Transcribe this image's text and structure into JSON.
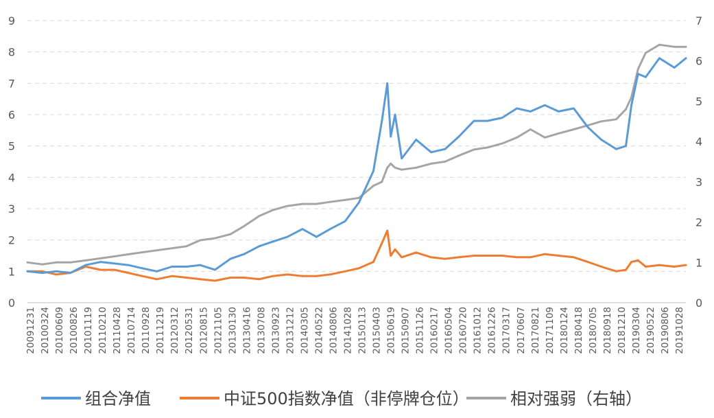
{
  "chart_data": {
    "type": "line",
    "y_left": {
      "ylim": [
        0,
        9
      ],
      "ticks": [
        "0",
        "1",
        "2",
        "3",
        "4",
        "5",
        "6",
        "7",
        "8",
        "9"
      ]
    },
    "y_right": {
      "ylim": [
        0,
        7
      ],
      "ticks": [
        "0",
        "1",
        "2",
        "3",
        "4",
        "5",
        "6",
        "7"
      ]
    },
    "grid": "horizontal dashed",
    "legend_position": "bottom",
    "x_tick_labels": [
      "20091231",
      "20100324",
      "20100609",
      "20100826",
      "20101119",
      "20110210",
      "20110428",
      "20110714",
      "20110928",
      "20111219",
      "20120312",
      "20120531",
      "20120815",
      "20121105",
      "20130130",
      "20130416",
      "20130708",
      "20130923",
      "20131212",
      "20140305",
      "20140522",
      "20140806",
      "20141028",
      "20150113",
      "20150403",
      "20150619",
      "20150907",
      "20151126",
      "20160217",
      "20160504",
      "20160720",
      "20161012",
      "20161226",
      "20170317",
      "20170607",
      "20170821",
      "20171109",
      "20180124",
      "20180418",
      "20180705",
      "20180918",
      "20181210",
      "20190304",
      "20190522",
      "20190806",
      "20191028"
    ],
    "series": [
      {
        "name": "组合净值",
        "axis": "left",
        "color": "#5B9BD5",
        "x": [
          "20091231",
          "20100324",
          "20100609",
          "20100826",
          "20101119",
          "20110210",
          "20110428",
          "20110714",
          "20110928",
          "20111219",
          "20120312",
          "20120531",
          "20120815",
          "20121105",
          "20130130",
          "20130416",
          "20130708",
          "20130923",
          "20131212",
          "20140305",
          "20140522",
          "20140806",
          "20141028",
          "20150113",
          "20150403",
          "20150520",
          "20150619",
          "20150708",
          "20150801",
          "20150907",
          "20151126",
          "20160217",
          "20160504",
          "20160720",
          "20161012",
          "20161226",
          "20170317",
          "20170607",
          "20170821",
          "20171109",
          "20180124",
          "20180418",
          "20180705",
          "20180918",
          "20181210",
          "20190201",
          "20190304",
          "20190410",
          "20190522",
          "20190806",
          "20191028",
          "20191231"
        ],
        "values": [
          1.0,
          0.95,
          1.0,
          0.95,
          1.2,
          1.3,
          1.25,
          1.2,
          1.1,
          1.0,
          1.15,
          1.15,
          1.2,
          1.05,
          1.4,
          1.55,
          1.8,
          1.95,
          2.1,
          2.35,
          2.1,
          2.35,
          2.6,
          3.2,
          4.2,
          5.8,
          7.0,
          5.3,
          6.0,
          4.6,
          5.2,
          4.8,
          4.9,
          5.3,
          5.8,
          5.8,
          5.9,
          6.2,
          6.1,
          6.3,
          6.1,
          6.2,
          5.6,
          5.2,
          4.9,
          5.0,
          6.3,
          7.3,
          7.2,
          7.8,
          7.5,
          7.8
        ]
      },
      {
        "name": "中证500指数净值（非停牌仓位）",
        "axis": "left",
        "color": "#ED7D31",
        "x": [
          "20091231",
          "20100324",
          "20100609",
          "20100826",
          "20101119",
          "20110210",
          "20110428",
          "20110714",
          "20110928",
          "20111219",
          "20120312",
          "20120531",
          "20120815",
          "20121105",
          "20130130",
          "20130416",
          "20130708",
          "20130923",
          "20131212",
          "20140305",
          "20140522",
          "20140806",
          "20141028",
          "20150113",
          "20150403",
          "20150520",
          "20150619",
          "20150708",
          "20150801",
          "20150907",
          "20151126",
          "20160217",
          "20160504",
          "20160720",
          "20161012",
          "20161226",
          "20170317",
          "20170607",
          "20170821",
          "20171109",
          "20180124",
          "20180418",
          "20180705",
          "20180918",
          "20181210",
          "20190201",
          "20190304",
          "20190410",
          "20190522",
          "20190806",
          "20191028",
          "20191231"
        ],
        "values": [
          1.0,
          1.0,
          0.9,
          0.95,
          1.15,
          1.05,
          1.05,
          0.95,
          0.85,
          0.75,
          0.85,
          0.8,
          0.75,
          0.7,
          0.8,
          0.8,
          0.75,
          0.85,
          0.9,
          0.85,
          0.85,
          0.9,
          1.0,
          1.1,
          1.3,
          1.9,
          2.3,
          1.5,
          1.7,
          1.45,
          1.6,
          1.45,
          1.4,
          1.45,
          1.5,
          1.5,
          1.5,
          1.45,
          1.45,
          1.55,
          1.5,
          1.45,
          1.3,
          1.15,
          1.0,
          1.05,
          1.3,
          1.35,
          1.15,
          1.2,
          1.15,
          1.2
        ]
      },
      {
        "name": "相对强弱（右轴）",
        "axis": "right",
        "color": "#A5A5A5",
        "x": [
          "20091231",
          "20100324",
          "20100609",
          "20100826",
          "20101119",
          "20110210",
          "20110428",
          "20110714",
          "20110928",
          "20111219",
          "20120312",
          "20120531",
          "20120815",
          "20121105",
          "20130130",
          "20130416",
          "20130708",
          "20130923",
          "20131212",
          "20140305",
          "20140522",
          "20140806",
          "20141028",
          "20150113",
          "20150403",
          "20150520",
          "20150619",
          "20150708",
          "20150801",
          "20150907",
          "20151126",
          "20160217",
          "20160504",
          "20160720",
          "20161012",
          "20161226",
          "20170317",
          "20170607",
          "20170821",
          "20171109",
          "20180124",
          "20180418",
          "20180705",
          "20180918",
          "20181210",
          "20190201",
          "20190304",
          "20190410",
          "20190522",
          "20190806",
          "20191028",
          "20191231"
        ],
        "values": [
          1.0,
          0.95,
          1.0,
          1.0,
          1.05,
          1.1,
          1.15,
          1.2,
          1.25,
          1.3,
          1.35,
          1.4,
          1.55,
          1.6,
          1.7,
          1.9,
          2.15,
          2.3,
          2.4,
          2.45,
          2.45,
          2.5,
          2.55,
          2.6,
          2.9,
          3.0,
          3.35,
          3.45,
          3.35,
          3.3,
          3.35,
          3.45,
          3.5,
          3.65,
          3.8,
          3.85,
          3.95,
          4.1,
          4.3,
          4.1,
          4.2,
          4.3,
          4.4,
          4.5,
          4.55,
          4.8,
          5.1,
          5.8,
          6.2,
          6.4,
          6.35,
          6.35
        ]
      }
    ]
  }
}
